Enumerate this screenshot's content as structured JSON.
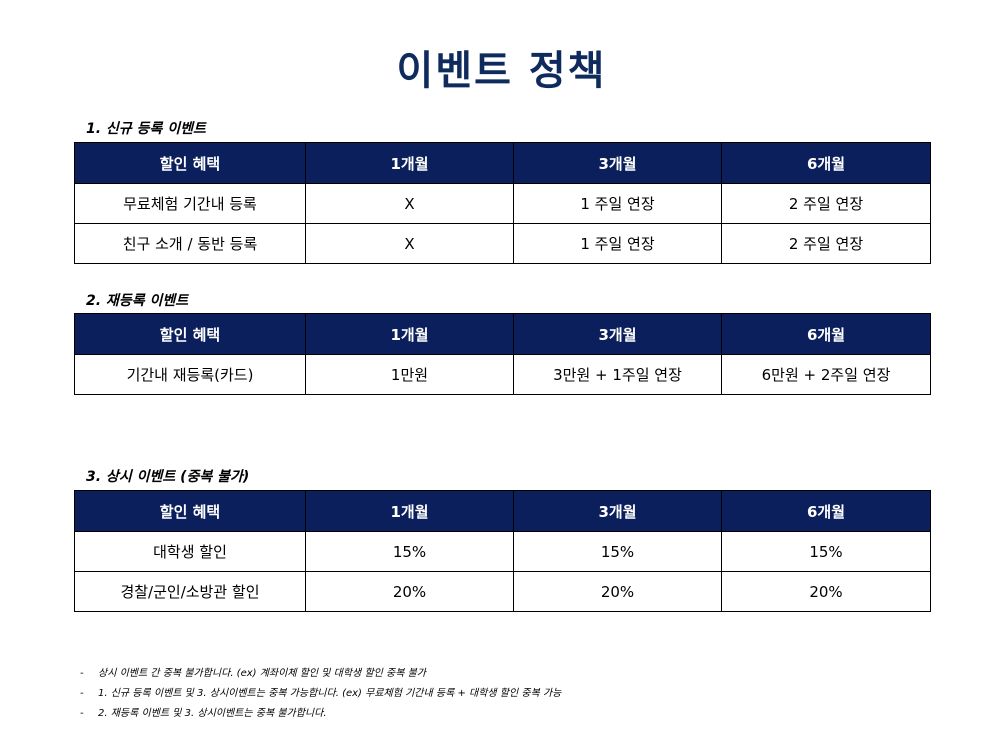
{
  "page_title": "이벤트 정책",
  "sections": [
    {
      "title": "1. 신규 등록 이벤트",
      "headers": [
        "할인 혜택",
        "1개월",
        "3개월",
        "6개월"
      ],
      "rows": [
        [
          "무료체험 기간내 등록",
          "X",
          "1 주일 연장",
          "2 주일 연장"
        ],
        [
          "친구 소개 / 동반 등록",
          "X",
          "1 주일 연장",
          "2 주일 연장"
        ]
      ]
    },
    {
      "title": "2. 재등록 이벤트",
      "headers": [
        "할인 혜택",
        "1개월",
        "3개월",
        "6개월"
      ],
      "rows": [
        [
          "기간내 재등록(카드)",
          "1만원",
          "3만원 + 1주일 연장",
          "6만원 + 2주일 연장"
        ]
      ]
    },
    {
      "title": "3. 상시 이벤트 (중복 불가)",
      "headers": [
        "할인 혜택",
        "1개월",
        "3개월",
        "6개월"
      ],
      "rows": [
        [
          "대학생 할인",
          "15%",
          "15%",
          "15%"
        ],
        [
          "경찰/군인/소방관 할인",
          "20%",
          "20%",
          "20%"
        ]
      ]
    }
  ],
  "notes": [
    {
      "dash": "-",
      "text": "상시 이벤트 간 중복 불가합니다. (ex) 계좌이체 할인 및 대학생 할인 중복 불가"
    },
    {
      "dash": "-",
      "text": "1. 신규 등록 이벤트 및 3. 상시이벤트는 중복 가능합니다. (ex) 무료체험 기간내 등록 + 대학생 할인 중복 가능"
    },
    {
      "dash": "-",
      "text": "2. 재등록 이벤트 및 3. 상시이벤트는 중복 불가합니다."
    }
  ]
}
